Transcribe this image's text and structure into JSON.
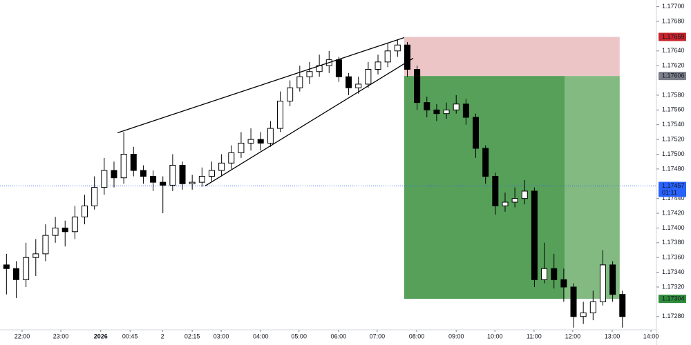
{
  "chart_data": {
    "type": "candlestick",
    "x": [
      -0.4,
      -0.15,
      0.1,
      0.35,
      0.6,
      0.85,
      1.1,
      1.35,
      1.6,
      1.85,
      2.1,
      2.35,
      2.6,
      2.85,
      3.1,
      3.35,
      3.6,
      3.85,
      4.1,
      4.35,
      4.6,
      4.85,
      5.1,
      5.35,
      5.6,
      5.85,
      6.1,
      6.35,
      6.6,
      6.85,
      7.1,
      7.35,
      7.6,
      7.85,
      8.1,
      8.35,
      8.6,
      8.85,
      9.1,
      9.35,
      9.6,
      9.85,
      10.1,
      10.35,
      10.6,
      10.85,
      11.1,
      11.35,
      11.6,
      11.85,
      12.1,
      12.35,
      12.6,
      12.85,
      13.1,
      13.35,
      13.6,
      13.85,
      14.1,
      14.35,
      14.6,
      14.85,
      15.1,
      15.35
    ],
    "open": [
      1.1735,
      1.17345,
      1.1733,
      1.1736,
      1.17365,
      1.1739,
      1.174,
      1.17395,
      1.17415,
      1.1743,
      1.17455,
      1.17478,
      1.17468,
      1.175,
      1.17478,
      1.1747,
      1.17462,
      1.17458,
      1.17485,
      1.1746,
      1.17462,
      1.1747,
      1.17478,
      1.17488,
      1.17502,
      1.17515,
      1.1752,
      1.17515,
      1.17535,
      1.17572,
      1.1759,
      1.17605,
      1.17612,
      1.1762,
      1.17628,
      1.17605,
      1.1759,
      1.17595,
      1.17615,
      1.17625,
      1.1764,
      1.17648,
      1.17615,
      1.1757,
      1.1756,
      1.17555,
      1.1756,
      1.17568,
      1.1755,
      1.17508,
      1.1747,
      1.1743,
      1.17435,
      1.1744,
      1.1745,
      1.1733,
      1.17345,
      1.1733,
      1.1732,
      1.1728,
      1.17285,
      1.173,
      1.1735,
      1.1731
    ],
    "high": [
      1.17365,
      1.17355,
      1.1738,
      1.17385,
      1.17405,
      1.17415,
      1.1741,
      1.1743,
      1.17445,
      1.1747,
      1.17495,
      1.1749,
      1.1753,
      1.1751,
      1.17485,
      1.17478,
      1.1747,
      1.175,
      1.1749,
      1.17472,
      1.17482,
      1.1749,
      1.175,
      1.17512,
      1.1753,
      1.17535,
      1.1753,
      1.17545,
      1.17585,
      1.176,
      1.1762,
      1.17625,
      1.17635,
      1.1764,
      1.17632,
      1.1761,
      1.17605,
      1.17625,
      1.17635,
      1.1765,
      1.17655,
      1.17652,
      1.1762,
      1.17578,
      1.17568,
      1.1757,
      1.1758,
      1.17575,
      1.17555,
      1.17512,
      1.17475,
      1.17448,
      1.17455,
      1.17465,
      1.17455,
      1.1738,
      1.17365,
      1.17345,
      1.17325,
      1.173,
      1.17315,
      1.1737,
      1.17355,
      1.17315
    ],
    "low": [
      1.1731,
      1.17305,
      1.1732,
      1.17335,
      1.17355,
      1.1738,
      1.17375,
      1.17385,
      1.17405,
      1.17425,
      1.17445,
      1.17455,
      1.1746,
      1.1747,
      1.1746,
      1.1745,
      1.1742,
      1.1745,
      1.17452,
      1.17452,
      1.17456,
      1.17462,
      1.1747,
      1.1748,
      1.17495,
      1.17505,
      1.17505,
      1.1751,
      1.1753,
      1.17565,
      1.17585,
      1.17595,
      1.17605,
      1.1761,
      1.17598,
      1.1758,
      1.17582,
      1.1759,
      1.17608,
      1.17618,
      1.17632,
      1.17605,
      1.1756,
      1.1755,
      1.17545,
      1.17548,
      1.17555,
      1.1754,
      1.17495,
      1.1746,
      1.17418,
      1.17422,
      1.17428,
      1.17432,
      1.1732,
      1.17325,
      1.17318,
      1.173,
      1.17265,
      1.1727,
      1.17275,
      1.17295,
      1.173,
      1.17265
    ],
    "close": [
      1.17345,
      1.1733,
      1.1736,
      1.17365,
      1.1739,
      1.174,
      1.17395,
      1.17415,
      1.1743,
      1.17455,
      1.17478,
      1.17468,
      1.175,
      1.17478,
      1.1747,
      1.17462,
      1.17458,
      1.17485,
      1.1746,
      1.17462,
      1.1747,
      1.17478,
      1.17488,
      1.17502,
      1.17515,
      1.1752,
      1.17515,
      1.17535,
      1.17572,
      1.1759,
      1.17605,
      1.17612,
      1.1762,
      1.17628,
      1.17605,
      1.1759,
      1.17595,
      1.17615,
      1.17625,
      1.1764,
      1.17648,
      1.17615,
      1.1757,
      1.1756,
      1.17555,
      1.1756,
      1.17568,
      1.1755,
      1.17508,
      1.1747,
      1.1743,
      1.17435,
      1.1744,
      1.1745,
      1.1733,
      1.17345,
      1.1733,
      1.1732,
      1.1728,
      1.17285,
      1.173,
      1.1735,
      1.1731,
      1.1728
    ],
    "up_color": "#ffffff",
    "down_color": "#000000",
    "xlim": [
      -0.565,
      16.22
    ],
    "ylim": [
      1.17262,
      1.17709
    ],
    "xticks": [
      {
        "value": 0,
        "label": "22:00"
      },
      {
        "value": 0.99,
        "label": "23:00"
      },
      {
        "value": 2.01,
        "label": "2026"
      },
      {
        "value": 2.76,
        "label": "00:45"
      },
      {
        "value": 3.59,
        "label": "2"
      },
      {
        "value": 4.35,
        "label": "02:15"
      },
      {
        "value": 5.09,
        "label": "03:00"
      },
      {
        "value": 6.1,
        "label": "04:00"
      },
      {
        "value": 7.08,
        "label": "05:00"
      },
      {
        "value": 8.09,
        "label": "06:00"
      },
      {
        "value": 9.08,
        "label": "07:00"
      },
      {
        "value": 10.09,
        "label": "08:00"
      },
      {
        "value": 11.1,
        "label": "09:00"
      },
      {
        "value": 12.09,
        "label": "10:00"
      },
      {
        "value": 13.09,
        "label": "11:00"
      },
      {
        "value": 14.08,
        "label": "12:00"
      },
      {
        "value": 15.09,
        "label": "13:00"
      },
      {
        "value": 16.08,
        "label": "14:00"
      }
    ],
    "yticks": [
      {
        "value": 1.177,
        "label": "1.17700"
      },
      {
        "value": 1.1768,
        "label": "1.17680"
      },
      {
        "value": 1.1764,
        "label": "1.17640"
      },
      {
        "value": 1.1762,
        "label": "1.17620"
      },
      {
        "value": 1.1758,
        "label": "1.17580"
      },
      {
        "value": 1.1756,
        "label": "1.17560"
      },
      {
        "value": 1.1754,
        "label": "1.17540"
      },
      {
        "value": 1.1752,
        "label": "1.17520"
      },
      {
        "value": 1.175,
        "label": "1.17500"
      },
      {
        "value": 1.1748,
        "label": "1.17480"
      },
      {
        "value": 1.1744,
        "label": "1.17440"
      },
      {
        "value": 1.1742,
        "label": "1.17420"
      },
      {
        "value": 1.174,
        "label": "1.17400"
      },
      {
        "value": 1.1738,
        "label": "1.17380"
      },
      {
        "value": 1.1736,
        "label": "1.17360"
      },
      {
        "value": 1.1734,
        "label": "1.17340"
      },
      {
        "value": 1.1732,
        "label": "1.17320"
      },
      {
        "value": 1.1728,
        "label": "1.17280"
      }
    ],
    "position": {
      "start": 9.77,
      "split": 13.87,
      "end": 15.28,
      "entry": 1.17606,
      "stop": 1.17659,
      "target": 1.17304,
      "loss_color": "#ecc6c7",
      "profit_color": "#56a05a",
      "profit_color_light": "#82ba81",
      "stop_color": "#c8242c",
      "entry_color": "#7b7f8a",
      "target_color": "#2e8b3a"
    },
    "trendlines": [
      {
        "x": [
          2.44,
          9.77
        ],
        "y": [
          1.17529,
          1.17658
        ]
      },
      {
        "x": [
          4.68,
          10.0
        ],
        "y": [
          1.17457,
          1.1763
        ]
      }
    ],
    "last_price": {
      "value": 1.17457,
      "countdown": "01:11",
      "color": "#2962ff"
    }
  }
}
